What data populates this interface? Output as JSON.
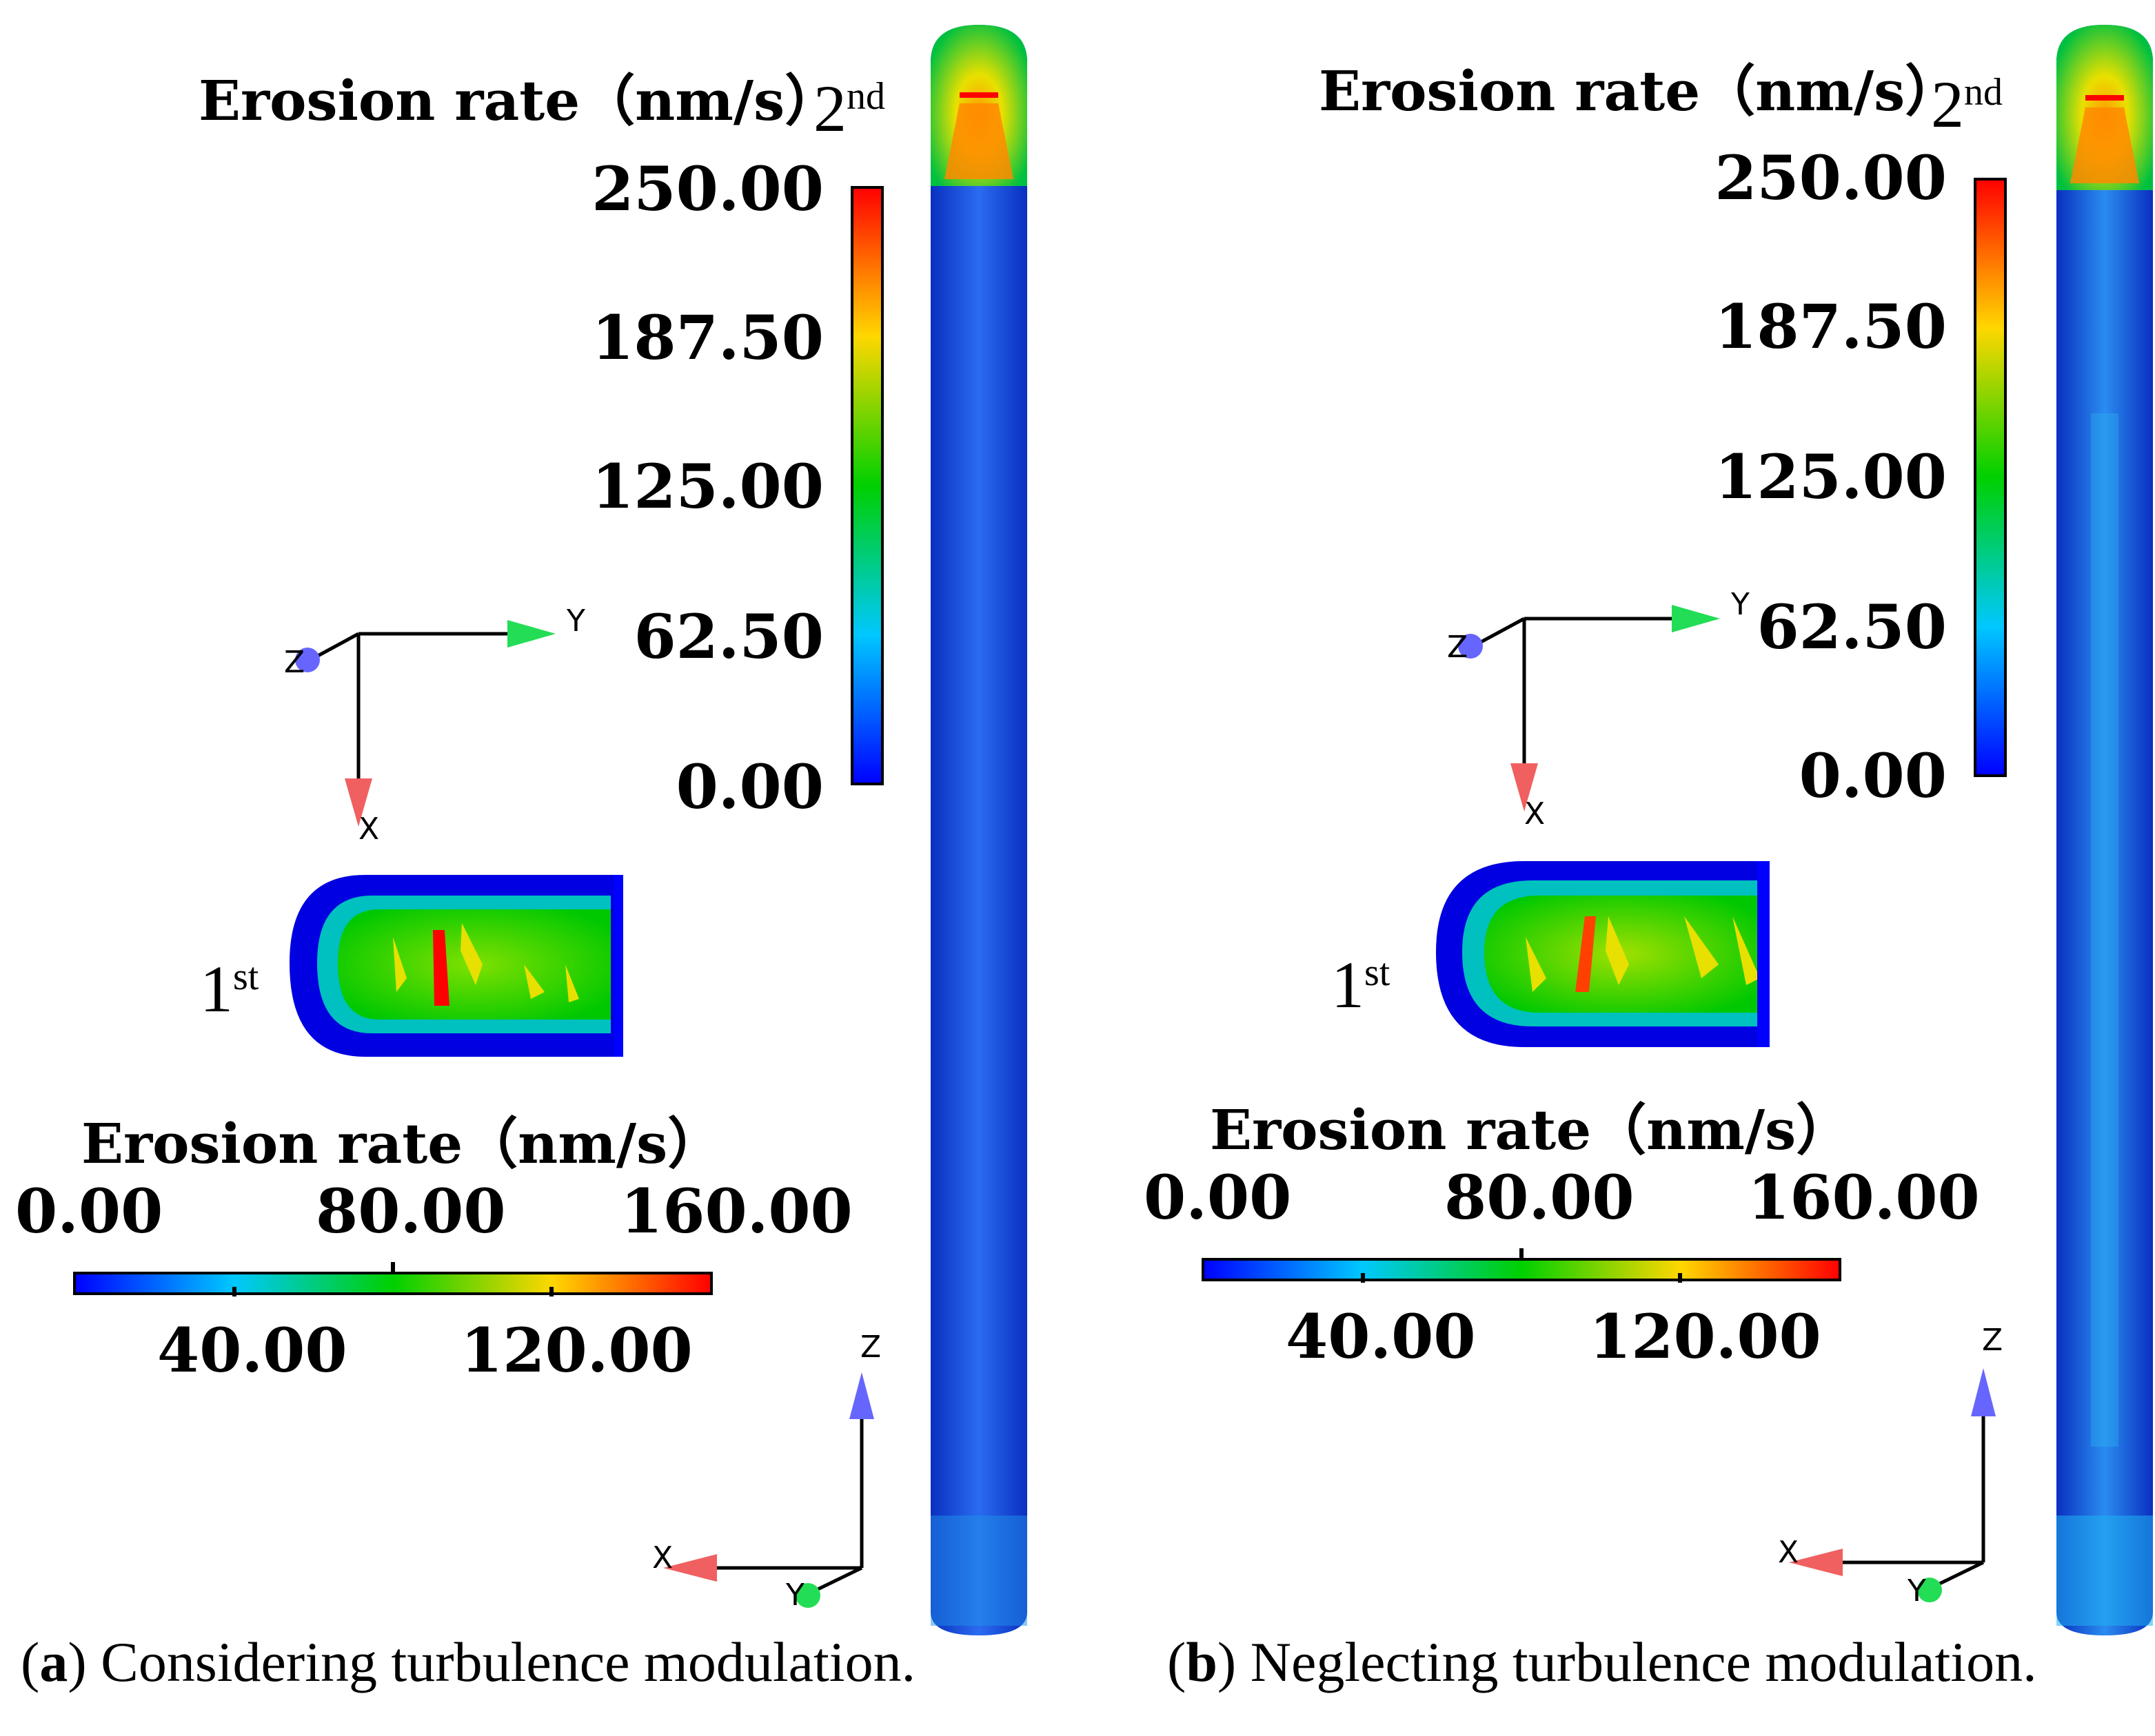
{
  "panels": [
    {
      "id": "a",
      "vertical_bar": {
        "title": "Erosion rate（nm/s）",
        "ticks": [
          "250.00",
          "187.50",
          "125.00",
          "62.50",
          "0.00"
        ]
      },
      "horizontal_bar": {
        "title": "Erosion rate（nm/s）",
        "top_ticks": [
          "0.00",
          "80.00",
          "160.00"
        ],
        "bottom_ticks": [
          "40.00",
          "120.00"
        ]
      },
      "first_label": {
        "main": "1",
        "sup": "st"
      },
      "second_label": {
        "main": "2",
        "sup": "nd"
      },
      "axes_top": {
        "y": "Y",
        "z": "Z",
        "x": "X"
      },
      "axes_bottom": {
        "z": "Z",
        "x": "X",
        "y": "Y"
      },
      "caption": {
        "letter": "a",
        "text": "Considering turbulence modulation."
      }
    },
    {
      "id": "b",
      "vertical_bar": {
        "title": "Erosion rate（nm/s）",
        "ticks": [
          "250.00",
          "187.50",
          "125.00",
          "62.50",
          "0.00"
        ]
      },
      "horizontal_bar": {
        "title": "Erosion rate（nm/s）",
        "top_ticks": [
          "0.00",
          "80.00",
          "160.00"
        ],
        "bottom_ticks": [
          "40.00",
          "120.00"
        ]
      },
      "first_label": {
        "main": "1",
        "sup": "st"
      },
      "second_label": {
        "main": "2",
        "sup": "nd"
      },
      "axes_top": {
        "y": "Y",
        "z": "Z",
        "x": "X"
      },
      "axes_bottom": {
        "z": "Z",
        "x": "X",
        "y": "Y"
      },
      "caption": {
        "letter": "b",
        "text": "Neglecting turbulence modulation."
      }
    }
  ],
  "colors": {
    "low": "#0000ff",
    "low_mid": "#00c8ff",
    "mid": "#00d000",
    "high_mid": "#ffd700",
    "high": "#ff0000",
    "pipe_body": "#1a4fe0"
  }
}
